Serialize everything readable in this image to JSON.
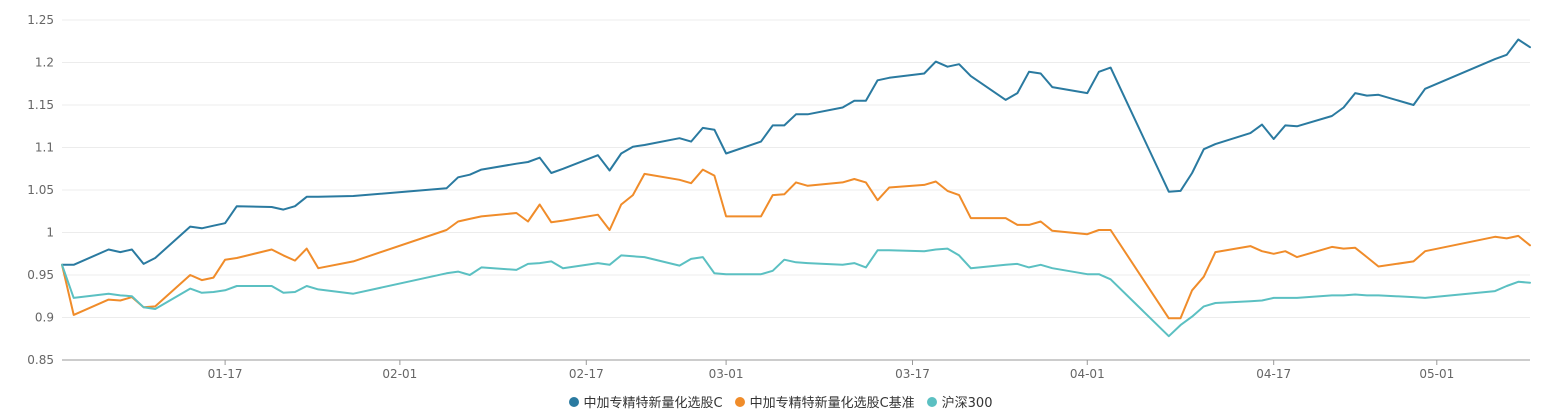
{
  "chart_data": {
    "type": "line",
    "ylim": [
      0.85,
      1.25
    ],
    "y_ticks": [
      "0.85",
      "0.9",
      "0.95",
      "1",
      "1.05",
      "1.1",
      "1.15",
      "1.2",
      "1.25"
    ],
    "x_ticks": [
      "01-17",
      "02-01",
      "02-17",
      "03-01",
      "03-17",
      "04-01",
      "04-17",
      "05-01"
    ],
    "x": [
      "01-03",
      "01-04",
      "01-07",
      "01-08",
      "01-09",
      "01-10",
      "01-11",
      "01-14",
      "01-15",
      "01-16",
      "01-17",
      "01-18",
      "01-21",
      "01-22",
      "01-23",
      "01-24",
      "01-25",
      "01-28",
      "02-05",
      "02-06",
      "02-07",
      "02-08",
      "02-11",
      "02-12",
      "02-13",
      "02-14",
      "02-15",
      "02-18",
      "02-19",
      "02-20",
      "02-21",
      "02-22",
      "02-25",
      "02-26",
      "02-27",
      "02-28",
      "03-01",
      "03-04",
      "03-05",
      "03-06",
      "03-07",
      "03-08",
      "03-11",
      "03-12",
      "03-13",
      "03-14",
      "03-15",
      "03-18",
      "03-19",
      "03-20",
      "03-21",
      "03-22",
      "03-25",
      "03-26",
      "03-27",
      "03-28",
      "03-29",
      "04-01",
      "04-02",
      "04-03",
      "04-08",
      "04-09",
      "04-10",
      "04-11",
      "04-12",
      "04-15",
      "04-16",
      "04-17",
      "04-18",
      "04-19",
      "04-22",
      "04-23",
      "04-24",
      "04-25",
      "04-26",
      "04-29",
      "04-30",
      "05-06",
      "05-07",
      "05-08",
      "05-09"
    ],
    "series": [
      {
        "name": "中加专精特新量化选股C",
        "color": "#2a7aa0",
        "values": [
          0.962,
          0.962,
          0.98,
          0.977,
          0.98,
          0.963,
          0.97,
          1.007,
          1.005,
          1.008,
          1.011,
          1.031,
          1.03,
          1.027,
          1.031,
          1.042,
          1.042,
          1.043,
          1.052,
          1.065,
          1.068,
          1.074,
          1.081,
          1.083,
          1.088,
          1.07,
          1.075,
          1.091,
          1.073,
          1.093,
          1.101,
          1.103,
          1.111,
          1.107,
          1.123,
          1.121,
          1.093,
          1.107,
          1.126,
          1.126,
          1.139,
          1.139,
          1.147,
          1.155,
          1.155,
          1.179,
          1.182,
          1.187,
          1.201,
          1.195,
          1.198,
          1.184,
          1.156,
          1.164,
          1.189,
          1.187,
          1.171,
          1.164,
          1.189,
          1.194,
          1.048,
          1.049,
          1.07,
          1.098,
          1.104,
          1.117,
          1.127,
          1.11,
          1.126,
          1.125,
          1.137,
          1.147,
          1.164,
          1.161,
          1.162,
          1.15,
          1.169,
          1.204,
          1.209,
          1.227,
          1.218
        ]
      },
      {
        "name": "中加专精特新量化选股C基准",
        "color": "#f08c2a",
        "values": [
          0.962,
          0.903,
          0.921,
          0.92,
          0.924,
          0.912,
          0.913,
          0.95,
          0.944,
          0.947,
          0.968,
          0.97,
          0.98,
          0.973,
          0.967,
          0.981,
          0.958,
          0.966,
          1.003,
          1.013,
          1.016,
          1.019,
          1.023,
          1.013,
          1.033,
          1.012,
          1.014,
          1.021,
          1.003,
          1.033,
          1.044,
          1.069,
          1.062,
          1.058,
          1.074,
          1.067,
          1.019,
          1.019,
          1.044,
          1.045,
          1.059,
          1.055,
          1.059,
          1.063,
          1.059,
          1.038,
          1.053,
          1.056,
          1.06,
          1.049,
          1.044,
          1.017,
          1.017,
          1.009,
          1.009,
          1.013,
          1.002,
          0.998,
          1.003,
          1.003,
          0.899,
          0.899,
          0.932,
          0.948,
          0.977,
          0.984,
          0.978,
          0.975,
          0.978,
          0.971,
          0.983,
          0.981,
          0.982,
          0.971,
          0.96,
          0.966,
          0.978,
          0.995,
          0.993,
          0.996,
          0.985
        ]
      },
      {
        "name": "沪深300",
        "color": "#5bc0c2",
        "values": [
          0.962,
          0.923,
          0.928,
          0.926,
          0.925,
          0.912,
          0.91,
          0.934,
          0.929,
          0.93,
          0.932,
          0.937,
          0.937,
          0.929,
          0.93,
          0.937,
          0.933,
          0.928,
          0.952,
          0.954,
          0.95,
          0.959,
          0.956,
          0.963,
          0.964,
          0.966,
          0.958,
          0.964,
          0.962,
          0.973,
          0.972,
          0.971,
          0.961,
          0.969,
          0.971,
          0.952,
          0.951,
          0.951,
          0.955,
          0.968,
          0.965,
          0.964,
          0.962,
          0.964,
          0.959,
          0.979,
          0.979,
          0.978,
          0.98,
          0.981,
          0.973,
          0.958,
          0.962,
          0.963,
          0.959,
          0.962,
          0.958,
          0.951,
          0.951,
          0.945,
          0.878,
          0.891,
          0.901,
          0.913,
          0.917,
          0.919,
          0.92,
          0.923,
          0.923,
          0.923,
          0.926,
          0.926,
          0.927,
          0.926,
          0.926,
          0.924,
          0.923,
          0.931,
          0.937,
          0.942,
          0.941
        ]
      }
    ]
  }
}
